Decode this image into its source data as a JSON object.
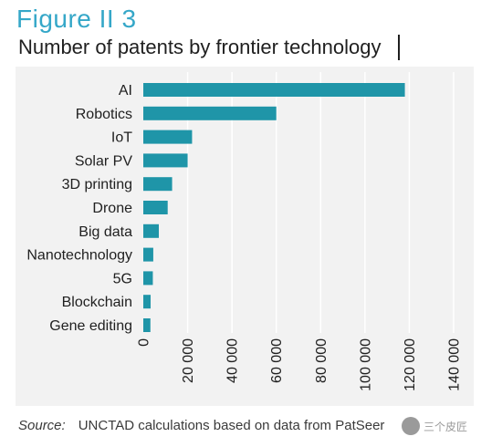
{
  "figure": {
    "label": "Figure II 3",
    "title": "Number of patents by frontier technology"
  },
  "source": {
    "label": "Source:",
    "text": "UNCTAD calculations based on data from PatSeer"
  },
  "watermark": {
    "text": "三个皮匠"
  },
  "colors": {
    "figure_label": "#35a7c8",
    "bar": "#1f95a8",
    "panel_bg": "#f2f2f2",
    "gridline": "#ffffff",
    "text": "#1f1f1f"
  },
  "chart_data": {
    "type": "bar",
    "orientation": "horizontal",
    "title": "Number of patents by frontier technology",
    "categories": [
      "AI",
      "Robotics",
      "IoT",
      "Solar PV",
      "3D printing",
      "Drone",
      "Big data",
      "Nanotechnology",
      "5G",
      "Blockchain",
      "Gene editing"
    ],
    "values": [
      118000,
      60000,
      22000,
      20000,
      13000,
      11000,
      7000,
      4500,
      4300,
      3300,
      3200
    ],
    "xlim": [
      0,
      140000
    ],
    "xticks": [
      0,
      20000,
      40000,
      60000,
      80000,
      100000,
      120000,
      140000
    ],
    "xtick_labels": [
      "0",
      "20 000",
      "40 000",
      "60 000",
      "80 000",
      "100 000",
      "120 000",
      "140 000"
    ],
    "tick_label_rotation": "vertical",
    "grid": "vertical",
    "legend": "none"
  }
}
